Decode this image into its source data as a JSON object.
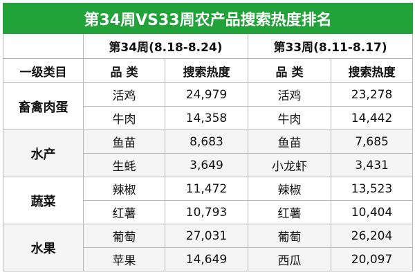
{
  "title": "第34周VS33周农产品搜索热度排名",
  "header": {
    "week34": "第34周(8.18-8.24)",
    "week33": "第33周(8.11-8.17)",
    "category": "一级类目",
    "item34": "品 类",
    "heat34": "搜索热度",
    "item33": "品 类",
    "heat33": "搜索热度"
  },
  "groups": [
    {
      "name": "畜禽肉蛋",
      "rows": [
        [
          "活鸡",
          "24,979",
          "活鸡",
          "23,278"
        ],
        [
          "牛肉",
          "14,358",
          "牛肉",
          "14,442"
        ]
      ]
    },
    {
      "name": "水产",
      "rows": [
        [
          "鱼苗",
          "8,683",
          "鱼苗",
          "7,685"
        ],
        [
          "生蚝",
          "3,649",
          "小龙虾",
          "3,431"
        ]
      ]
    },
    {
      "name": "蔬菜",
      "rows": [
        [
          "辣椒",
          "11,472",
          "辣椒",
          "13,523"
        ],
        [
          "红薯",
          "10,793",
          "红薯",
          "10,404"
        ]
      ]
    },
    {
      "name": "水果",
      "rows": [
        [
          "葡萄",
          "27,031",
          "葡萄",
          "26,204"
        ],
        [
          "苹果",
          "14,649",
          "西瓜",
          "20,097"
        ]
      ]
    }
  ]
}
